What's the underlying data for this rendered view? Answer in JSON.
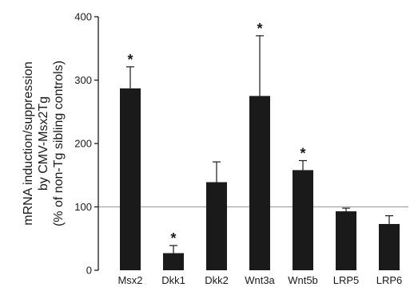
{
  "chart_data": {
    "type": "bar",
    "title": "",
    "xlabel": "",
    "ylabel_lines": [
      "mRNA induction/suppression",
      "by CMV-Msx2Tg",
      "(% of non-Tg sibling controls)"
    ],
    "ylim": [
      0,
      400
    ],
    "yticks": [
      0,
      100,
      200,
      300,
      400
    ],
    "reference_line": 100,
    "categories": [
      "Msx2",
      "Dkk1",
      "Dkk2",
      "Wnt3a",
      "Wnt5b",
      "LRP5",
      "LRP6"
    ],
    "values": [
      287,
      27,
      139,
      275,
      158,
      93,
      73
    ],
    "error_upper": [
      34,
      12,
      32,
      95,
      15,
      5,
      13
    ],
    "significance": [
      "*",
      "*",
      "",
      "*",
      "*",
      "",
      ""
    ],
    "grid": false,
    "colors": {
      "bar": "#1a1a1a",
      "axis": "#1a1a1a",
      "reference_line": "#999999"
    }
  }
}
